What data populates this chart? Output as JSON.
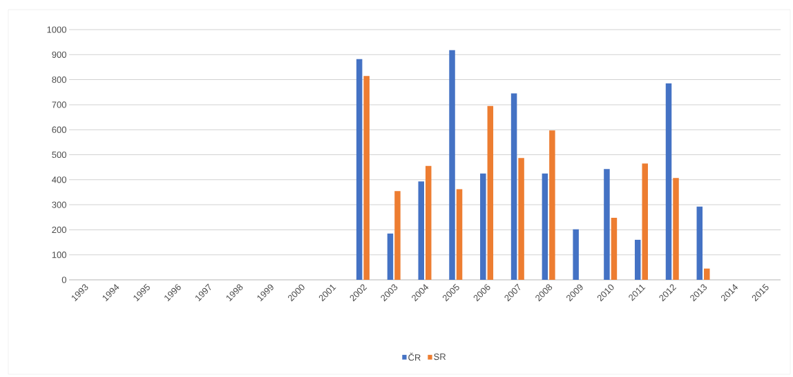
{
  "chart_data": {
    "type": "bar",
    "categories": [
      "1993",
      "1994",
      "1995",
      "1996",
      "1997",
      "1998",
      "1999",
      "2000",
      "2001",
      "2002",
      "2003",
      "2004",
      "2005",
      "2006",
      "2007",
      "2008",
      "2009",
      "2010",
      "2011",
      "2012",
      "2013",
      "2014",
      "2015"
    ],
    "series": [
      {
        "name": "ČR",
        "color": "#4472c4",
        "values": [
          null,
          null,
          null,
          null,
          null,
          null,
          null,
          null,
          null,
          882,
          185,
          393,
          918,
          425,
          745,
          425,
          202,
          443,
          160,
          785,
          293,
          null,
          null
        ]
      },
      {
        "name": "SR",
        "color": "#ed7d31",
        "values": [
          null,
          null,
          null,
          null,
          null,
          null,
          null,
          null,
          null,
          815,
          355,
          455,
          362,
          695,
          487,
          597,
          null,
          248,
          465,
          407,
          45,
          null,
          null
        ]
      }
    ],
    "ylim": [
      0,
      1000
    ],
    "yticks": [
      0,
      100,
      200,
      300,
      400,
      500,
      600,
      700,
      800,
      900,
      1000
    ],
    "grid": "y",
    "legend": "bottom"
  }
}
